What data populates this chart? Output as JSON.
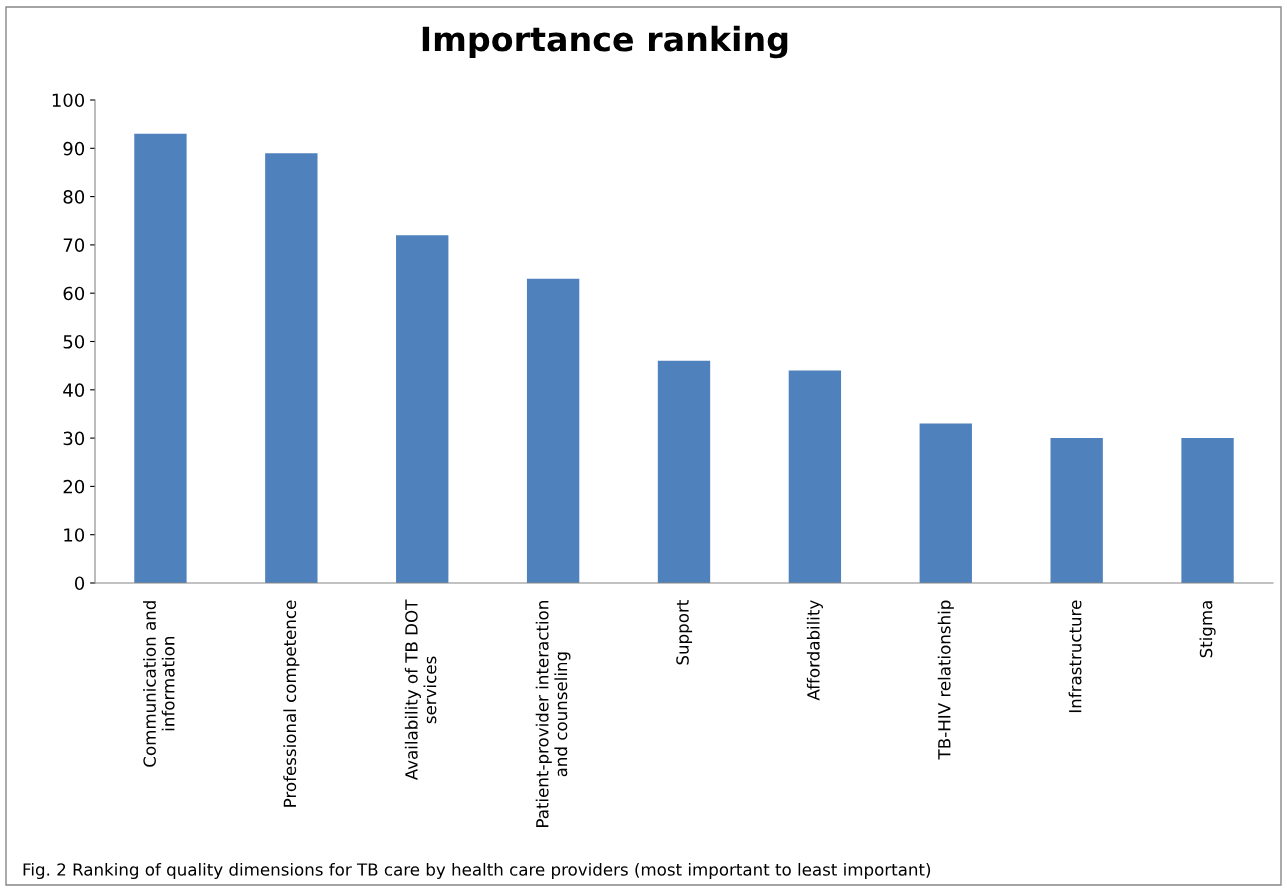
{
  "chart_data": {
    "type": "bar",
    "title": "Importance ranking",
    "categories": [
      "Communication and\ninformation",
      "Professional competence",
      "Availability of TB DOT\nservices",
      "Patient-provider interaction\nand counseling",
      "Support",
      "Affordability",
      "TB-HIV relationship",
      "Infrastructure",
      "Stigma"
    ],
    "values": [
      93,
      89,
      72,
      63,
      46,
      44,
      33,
      30,
      30
    ],
    "color": "#4f81bd",
    "ylim": [
      0,
      100
    ],
    "yticks": [
      0,
      10,
      20,
      30,
      40,
      50,
      60,
      70,
      80,
      90,
      100
    ],
    "grid": false,
    "annotations": [
      "Fig. 2 Ranking of quality dimensions for TB care by health care providers (most important to least important)"
    ]
  }
}
